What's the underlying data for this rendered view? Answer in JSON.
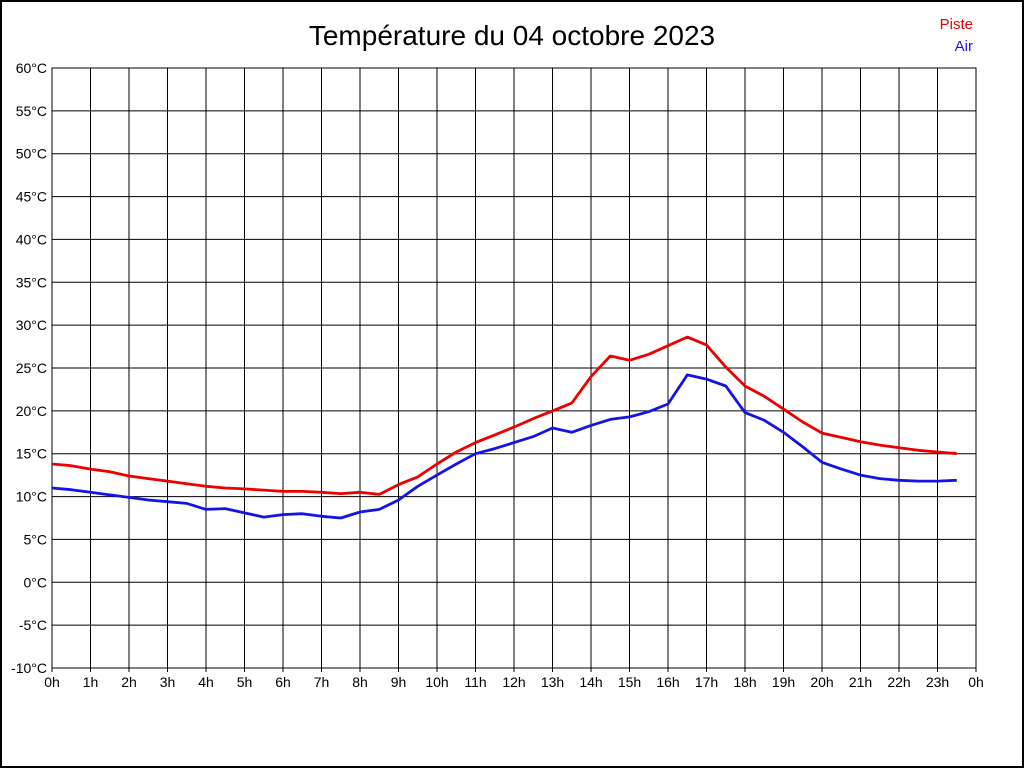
{
  "title": "Température du 04 octobre 2023",
  "legend": {
    "piste_label": "Piste",
    "air_label": "Air",
    "piste_color": "#ee0000",
    "air_color": "#1414e6"
  },
  "chart_data": {
    "type": "line",
    "title": "Température du 04 octobre 2023",
    "xlabel": "",
    "ylabel": "",
    "grid": true,
    "legend_position": "top-right",
    "xlim": [
      0,
      24
    ],
    "ylim": [
      -10,
      60
    ],
    "x_tick_labels": [
      "0h",
      "1h",
      "2h",
      "3h",
      "4h",
      "5h",
      "6h",
      "7h",
      "8h",
      "9h",
      "10h",
      "11h",
      "12h",
      "13h",
      "14h",
      "15h",
      "16h",
      "17h",
      "18h",
      "19h",
      "20h",
      "21h",
      "22h",
      "23h",
      "0h"
    ],
    "y_ticks": [
      60,
      55,
      50,
      45,
      40,
      35,
      30,
      25,
      20,
      15,
      10,
      5,
      0,
      -5,
      -10
    ],
    "y_tick_labels": [
      "60°C",
      "55°C",
      "50°C",
      "45°C",
      "40°C",
      "35°C",
      "30°C",
      "25°C",
      "20°C",
      "15°C",
      "10°C",
      "5°C",
      "0°C",
      "-5°C",
      "-10°C"
    ],
    "zero_line": {
      "value": 0,
      "width": 3
    },
    "x": [
      0,
      0.5,
      1,
      1.5,
      2,
      2.5,
      3,
      3.5,
      4,
      4.5,
      5,
      5.5,
      6,
      6.5,
      7,
      7.5,
      8,
      8.5,
      9,
      9.5,
      10,
      10.5,
      11,
      11.5,
      12,
      12.5,
      13,
      13.5,
      14,
      14.5,
      15,
      15.5,
      16,
      16.5,
      17,
      17.5,
      18,
      18.5,
      19,
      19.5,
      20,
      20.5,
      21,
      21.5,
      22,
      22.5,
      23,
      23.5
    ],
    "series": [
      {
        "name": "Piste",
        "color": "#ee0000",
        "values": [
          13.8,
          13.6,
          13.2,
          12.9,
          12.4,
          12.1,
          11.8,
          11.5,
          11.2,
          11.0,
          10.9,
          10.75,
          10.6,
          10.6,
          10.5,
          10.35,
          10.5,
          10.25,
          11.4,
          12.3,
          13.8,
          15.2,
          16.3,
          17.2,
          18.1,
          19.1,
          20.0,
          20.9,
          24.0,
          26.4,
          25.9,
          26.6,
          27.6,
          28.6,
          27.7,
          25.1,
          22.9,
          21.7,
          20.2,
          18.7,
          17.4,
          16.9,
          16.4,
          16.0,
          15.7,
          15.4,
          15.2,
          15.0
        ]
      },
      {
        "name": "Air",
        "color": "#1414e6",
        "values": [
          11.0,
          10.8,
          10.5,
          10.2,
          9.9,
          9.6,
          9.4,
          9.2,
          8.5,
          8.6,
          8.1,
          7.6,
          7.9,
          8.0,
          7.7,
          7.5,
          8.2,
          8.5,
          9.6,
          11.2,
          12.5,
          13.8,
          15.0,
          15.6,
          16.3,
          17.0,
          18.0,
          17.5,
          18.3,
          19.0,
          19.3,
          19.9,
          20.8,
          24.2,
          23.7,
          22.9,
          19.8,
          18.9,
          17.5,
          15.8,
          14.0,
          13.2,
          12.5,
          12.1,
          11.9,
          11.8,
          11.8,
          11.9
        ]
      }
    ]
  }
}
